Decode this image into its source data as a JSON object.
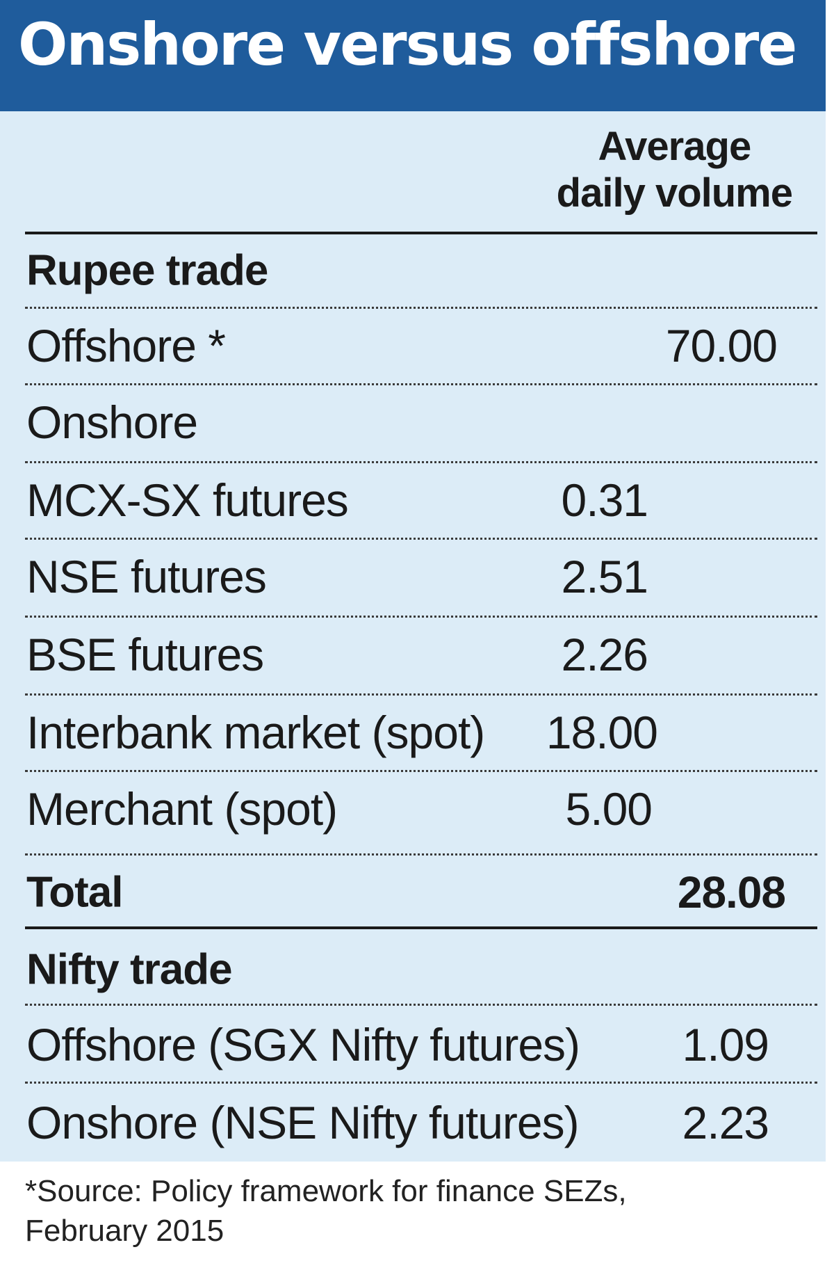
{
  "title": "Onshore versus offshore",
  "column_header": [
    "Average",
    "daily volume"
  ],
  "sections": [
    {
      "heading": "Rupee trade",
      "rows": [
        {
          "label": "Offshore *",
          "value": "70.00"
        },
        {
          "label": "Onshore",
          "value": ""
        },
        {
          "label": "MCX-SX futures",
          "value": "0.31"
        },
        {
          "label": "NSE futures",
          "value": "2.51"
        },
        {
          "label": "BSE futures",
          "value": "2.26"
        },
        {
          "label": "Interbank market (spot)",
          "value": "18.00"
        },
        {
          "label": "Merchant (spot)",
          "value": "5.00"
        }
      ],
      "total": {
        "label": "Total",
        "value": "28.08"
      }
    },
    {
      "heading": "Nifty trade",
      "rows": [
        {
          "label": "Offshore (SGX Nifty futures)",
          "value": "1.09"
        },
        {
          "label": "Onshore (NSE Nifty futures)",
          "value": "2.23"
        }
      ]
    }
  ],
  "source": [
    "*Source: Policy framework for finance SEZs,",
    "February 2015"
  ],
  "colors": {
    "header": "#1f5c9c",
    "background": "#dcecf7",
    "text": "#1a1a1a"
  }
}
